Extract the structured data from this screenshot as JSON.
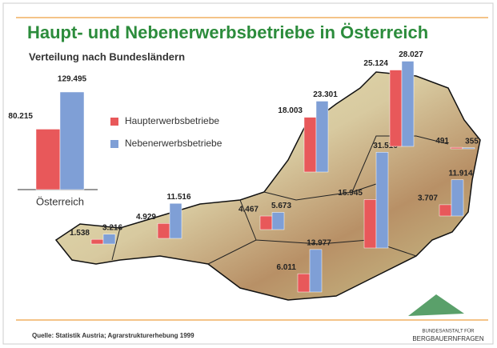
{
  "chart_data": [
    {
      "type": "bar",
      "title": "Haupt- und Nebenerwerbsbetriebe in Österreich",
      "subtitle": "Verteilung nach Bundesländern",
      "source": "Quelle: Statistik Austria; Agrarstrukturerhebung 1999",
      "categories": [
        "Österreich"
      ],
      "series": [
        {
          "name": "Haupterwerbsbetriebe",
          "color": "#e8585a",
          "values": [
            80215
          ],
          "value_labels": [
            "80.215"
          ]
        },
        {
          "name": "Nebenerwerbsbetriebe",
          "color": "#7f9fd6",
          "values": [
            129495
          ],
          "value_labels": [
            "129.495"
          ]
        }
      ]
    },
    {
      "type": "bar",
      "categories": [
        null,
        null,
        null,
        null,
        null,
        null,
        null,
        null,
        null
      ],
      "series": [
        {
          "color": "#e8585a",
          "values": [
            1538,
            4929,
            4467,
            6011,
            18003,
            15945,
            25124,
            491,
            3707
          ],
          "value_labels": [
            "1.538",
            "4.929",
            "4.467",
            "6.011",
            "18.003",
            "15.945",
            "25.124",
            "491",
            "3.707"
          ]
        },
        {
          "color": "#7f9fd6",
          "values": [
            3216,
            11516,
            5673,
            13977,
            23301,
            31516,
            28027,
            355,
            11914
          ],
          "value_labels": [
            "3.216",
            "11.516",
            "5.673",
            "13.977",
            "23.301",
            "31.516",
            "28.027",
            "355",
            "11.914"
          ]
        }
      ]
    }
  ],
  "logo": {
    "line1": "BUNDESANSTALT FÜR",
    "line2": "BERGBAUERNFRAGEN"
  }
}
